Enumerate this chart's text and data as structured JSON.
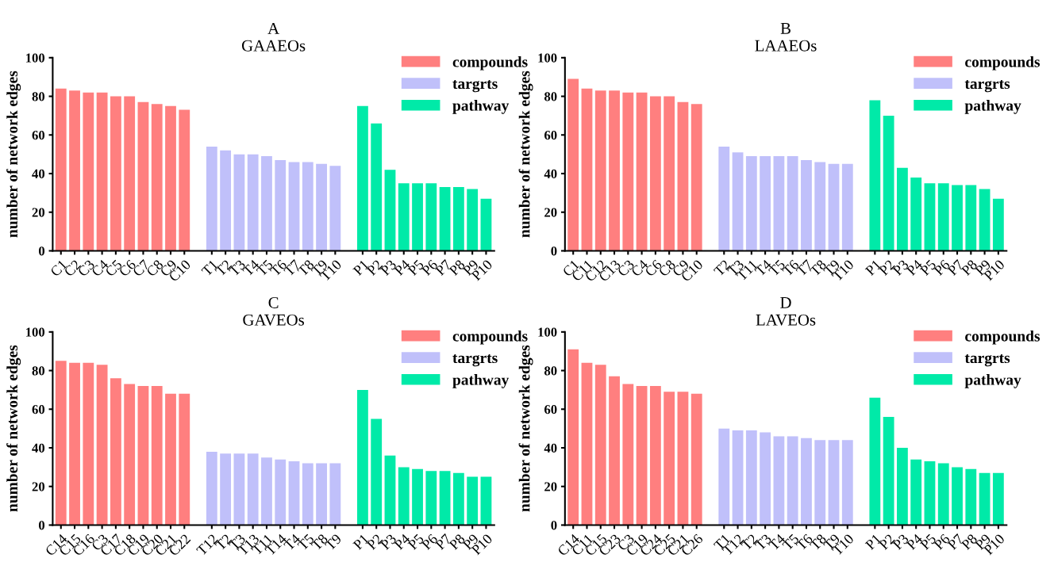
{
  "chart_data": [
    {
      "type": "bar",
      "title": "A\nGAAEOs",
      "ylabel": "number of network edges",
      "ylim": [
        0,
        100
      ],
      "yticks": [
        0,
        20,
        40,
        60,
        80,
        100
      ],
      "legend": "top right",
      "grid": false,
      "categories": [
        "C1",
        "C2",
        "C3",
        "C4",
        "C5",
        "C6",
        "C7",
        "C8",
        "C9",
        "C10",
        null,
        "T1",
        "T2",
        "T3",
        "T4",
        "T5",
        "T6",
        "T7",
        "T8",
        "T9",
        "T10",
        null,
        "P1",
        "P2",
        "P3",
        "P4",
        "P5",
        "P6",
        "P7",
        "P8",
        "P9",
        "P10"
      ],
      "series": [
        {
          "name": "compounds",
          "color": "#ff7f7f",
          "values": [
            84,
            83,
            82,
            82,
            80,
            80,
            77,
            76,
            75,
            73,
            null,
            null,
            null,
            null,
            null,
            null,
            null,
            null,
            null,
            null,
            null,
            null,
            null,
            null,
            null,
            null,
            null,
            null,
            null,
            null,
            null,
            null
          ]
        },
        {
          "name": "targrts",
          "color": "#c0c0fa",
          "values": [
            null,
            null,
            null,
            null,
            null,
            null,
            null,
            null,
            null,
            null,
            null,
            54,
            52,
            50,
            50,
            49,
            47,
            46,
            46,
            45,
            44,
            null,
            null,
            null,
            null,
            null,
            null,
            null,
            null,
            null,
            null,
            null
          ]
        },
        {
          "name": "pathway",
          "color": "#00eaa8",
          "values": [
            null,
            null,
            null,
            null,
            null,
            null,
            null,
            null,
            null,
            null,
            null,
            null,
            null,
            null,
            null,
            null,
            null,
            null,
            null,
            null,
            null,
            null,
            75,
            66,
            42,
            35,
            35,
            35,
            33,
            33,
            32,
            27
          ]
        }
      ]
    },
    {
      "type": "bar",
      "title": "B\nLAAEOs",
      "ylabel": "number of network edges",
      "ylim": [
        0,
        100
      ],
      "yticks": [
        0,
        20,
        40,
        60,
        80,
        100
      ],
      "legend": "top right",
      "grid": false,
      "categories": [
        "C1",
        "C11",
        "C12",
        "C13",
        "C3",
        "C4",
        "C6",
        "C8",
        "C9",
        "C10",
        null,
        "T2",
        "T3",
        "T11",
        "T4",
        "T5",
        "T6",
        "T7",
        "T8",
        "T9",
        "T10",
        null,
        "P1",
        "P2",
        "P3",
        "P4",
        "P5",
        "P6",
        "P7",
        "P8",
        "P9",
        "P10"
      ],
      "series": [
        {
          "name": "compounds",
          "color": "#ff7f7f",
          "values": [
            89,
            84,
            83,
            83,
            82,
            82,
            80,
            80,
            77,
            76,
            null,
            null,
            null,
            null,
            null,
            null,
            null,
            null,
            null,
            null,
            null,
            null,
            null,
            null,
            null,
            null,
            null,
            null,
            null,
            null,
            null,
            null
          ]
        },
        {
          "name": "targrts",
          "color": "#c0c0fa",
          "values": [
            null,
            null,
            null,
            null,
            null,
            null,
            null,
            null,
            null,
            null,
            null,
            54,
            51,
            49,
            49,
            49,
            49,
            47,
            46,
            45,
            45,
            null,
            null,
            null,
            null,
            null,
            null,
            null,
            null,
            null,
            null,
            null
          ]
        },
        {
          "name": "pathway",
          "color": "#00eaa8",
          "values": [
            null,
            null,
            null,
            null,
            null,
            null,
            null,
            null,
            null,
            null,
            null,
            null,
            null,
            null,
            null,
            null,
            null,
            null,
            null,
            null,
            null,
            null,
            78,
            70,
            43,
            38,
            35,
            35,
            34,
            34,
            32,
            27
          ]
        }
      ]
    },
    {
      "type": "bar",
      "title": "C\nGAVEOs",
      "ylabel": "number of network edges",
      "ylim": [
        0,
        100
      ],
      "yticks": [
        0,
        20,
        40,
        60,
        80,
        100
      ],
      "legend": "top right",
      "grid": false,
      "categories": [
        "C14",
        "C15",
        "C16",
        "C3",
        "C17",
        "C18",
        "C19",
        "C20",
        "C21",
        "C22",
        null,
        "T12",
        "T2",
        "T3",
        "T13",
        "T11",
        "T14",
        "T4",
        "T5",
        "T8",
        "T9",
        null,
        "P1",
        "P2",
        "P3",
        "P4",
        "P5",
        "P6",
        "P7",
        "P8",
        "P9",
        "P10"
      ],
      "series": [
        {
          "name": "compounds",
          "color": "#ff7f7f",
          "values": [
            85,
            84,
            84,
            83,
            76,
            73,
            72,
            72,
            68,
            68,
            null,
            null,
            null,
            null,
            null,
            null,
            null,
            null,
            null,
            null,
            null,
            null,
            null,
            null,
            null,
            null,
            null,
            null,
            null,
            null,
            null,
            null
          ]
        },
        {
          "name": "targrts",
          "color": "#c0c0fa",
          "values": [
            null,
            null,
            null,
            null,
            null,
            null,
            null,
            null,
            null,
            null,
            null,
            38,
            37,
            37,
            37,
            35,
            34,
            33,
            32,
            32,
            32,
            null,
            null,
            null,
            null,
            null,
            null,
            null,
            null,
            null,
            null,
            null
          ]
        },
        {
          "name": "pathway",
          "color": "#00eaa8",
          "values": [
            null,
            null,
            null,
            null,
            null,
            null,
            null,
            null,
            null,
            null,
            null,
            null,
            null,
            null,
            null,
            null,
            null,
            null,
            null,
            null,
            null,
            null,
            70,
            55,
            36,
            30,
            29,
            28,
            28,
            27,
            25,
            25
          ]
        }
      ]
    },
    {
      "type": "bar",
      "title": "D\nLAVEOs",
      "ylabel": "number of network edges",
      "ylim": [
        0,
        100
      ],
      "yticks": [
        0,
        20,
        40,
        60,
        80,
        100
      ],
      "legend": "top right",
      "grid": false,
      "categories": [
        "C14",
        "C11",
        "C15",
        "C23",
        "C3",
        "C19",
        "C24",
        "C25",
        "C21",
        "C26",
        null,
        "T1",
        "T12",
        "T2",
        "T3",
        "T4",
        "T5",
        "T6",
        "T8",
        "T9",
        "T10",
        null,
        "P1",
        "P2",
        "P3",
        "P4",
        "P5",
        "P6",
        "P7",
        "P8",
        "P9",
        "P10"
      ],
      "series": [
        {
          "name": "compounds",
          "color": "#ff7f7f",
          "values": [
            91,
            84,
            83,
            77,
            73,
            72,
            72,
            69,
            69,
            68,
            null,
            null,
            null,
            null,
            null,
            null,
            null,
            null,
            null,
            null,
            null,
            null,
            null,
            null,
            null,
            null,
            null,
            null,
            null,
            null,
            null,
            null
          ]
        },
        {
          "name": "targrts",
          "color": "#c0c0fa",
          "values": [
            null,
            null,
            null,
            null,
            null,
            null,
            null,
            null,
            null,
            null,
            null,
            50,
            49,
            49,
            48,
            46,
            46,
            45,
            44,
            44,
            44,
            null,
            null,
            null,
            null,
            null,
            null,
            null,
            null,
            null,
            null,
            null
          ]
        },
        {
          "name": "pathway",
          "color": "#00eaa8",
          "values": [
            null,
            null,
            null,
            null,
            null,
            null,
            null,
            null,
            null,
            null,
            null,
            null,
            null,
            null,
            null,
            null,
            null,
            null,
            null,
            null,
            null,
            null,
            66,
            56,
            40,
            34,
            33,
            32,
            30,
            29,
            27,
            27
          ]
        }
      ]
    }
  ]
}
